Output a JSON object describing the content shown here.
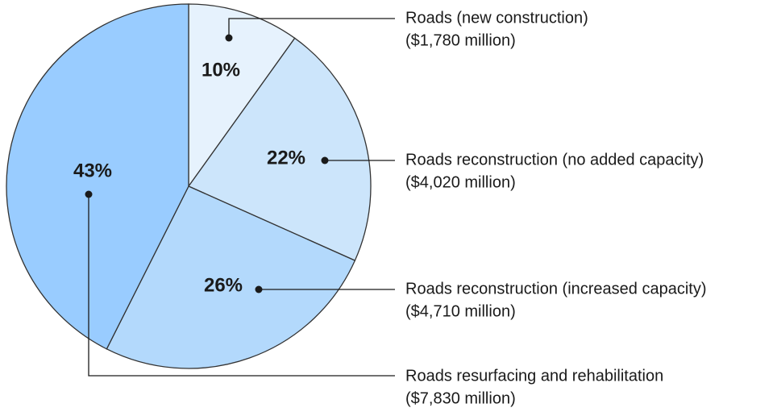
{
  "chart_data": {
    "type": "pie",
    "categories": [
      "Roads (new construction)",
      "Roads reconstruction (no added capacity)",
      "Roads reconstruction (increased capacity)",
      "Roads resurfacing and rehabilitation"
    ],
    "amount_labels": [
      "($1,780 million)",
      "($4,020 million)",
      "($4,710 million)",
      "($7,830 million)"
    ],
    "values": [
      10,
      22,
      26,
      43
    ],
    "value_labels": [
      "10%",
      "22%",
      "26%",
      "43%"
    ],
    "colors": [
      "#e6f2fd",
      "#cce5fb",
      "#b3d9fc",
      "#99ccff"
    ]
  }
}
